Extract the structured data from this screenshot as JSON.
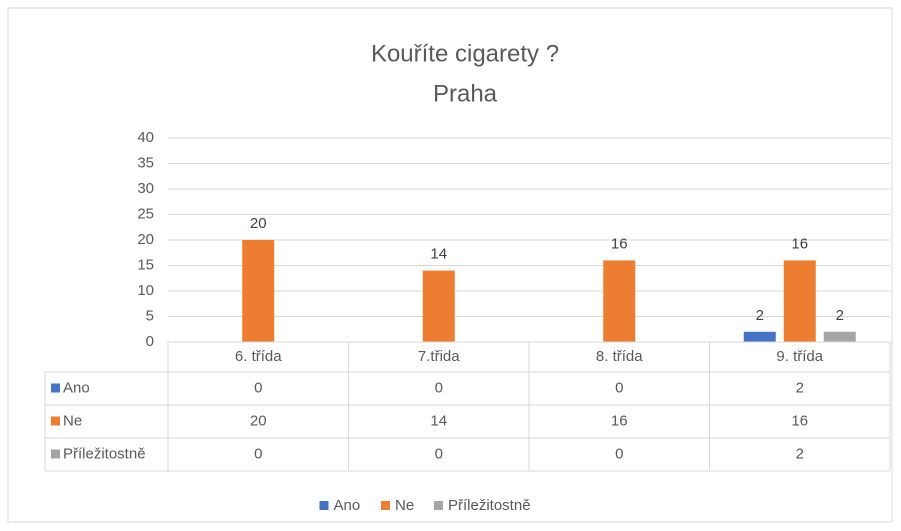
{
  "chart_data": {
    "type": "bar",
    "title": "Kouříte cigarety ?",
    "subtitle": "Praha",
    "categories": [
      "6. třída",
      "7.třida",
      "8. třída",
      "9. třída"
    ],
    "series": [
      {
        "name": "Ano",
        "color": "#4472c4",
        "values": [
          0,
          0,
          0,
          2
        ]
      },
      {
        "name": "Ne",
        "color": "#ed7d31",
        "values": [
          20,
          14,
          16,
          16
        ]
      },
      {
        "name": "Příležitostně",
        "color": "#a5a5a5",
        "values": [
          0,
          0,
          0,
          2
        ]
      }
    ],
    "ylim": [
      0,
      40
    ],
    "yticks": [
      0,
      5,
      10,
      15,
      20,
      25,
      30,
      35,
      40
    ],
    "grid": true,
    "data_table": true,
    "legend": "bottom"
  }
}
